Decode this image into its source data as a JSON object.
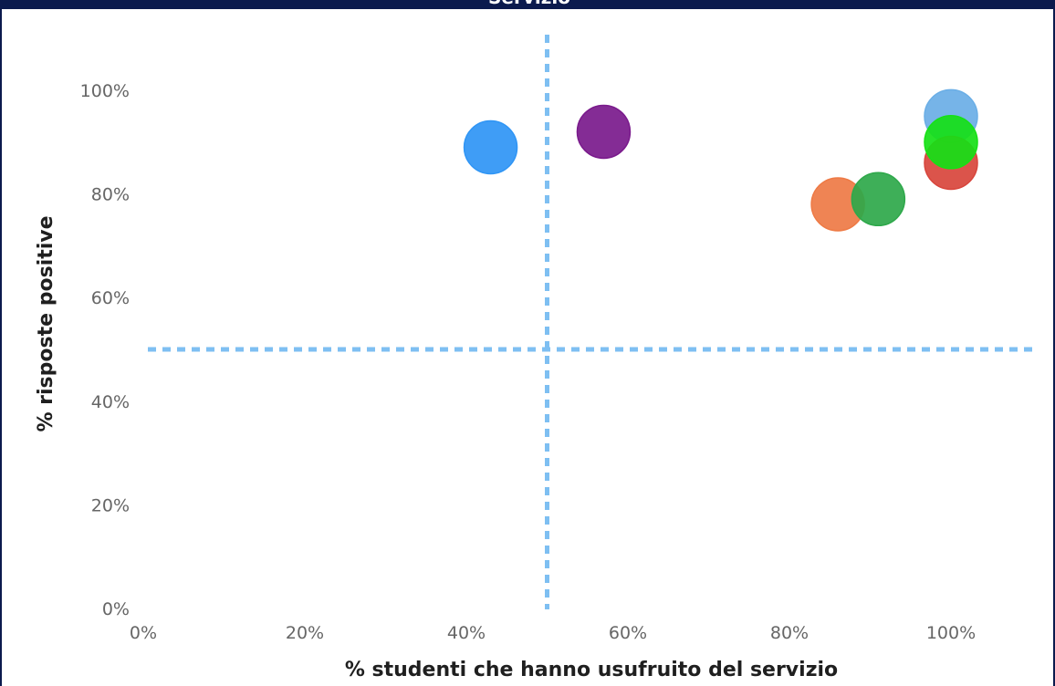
{
  "header": {
    "title": "Servizio"
  },
  "chart_data": {
    "type": "scatter",
    "xlabel": "% studenti che hanno usufruito del servizio",
    "ylabel": "% risposte positive",
    "xlim": [
      0,
      110
    ],
    "ylim": [
      0,
      110
    ],
    "x_ticks": [
      "0%",
      "20%",
      "40%",
      "60%",
      "80%",
      "100%"
    ],
    "y_ticks": [
      "0%",
      "20%",
      "40%",
      "60%",
      "80%",
      "100%"
    ],
    "grid": false,
    "reference_lines": {
      "x": 50,
      "y": 50,
      "color": "#7ebff2",
      "style": "dashed"
    },
    "points": [
      {
        "x": 43,
        "y": 89,
        "color": "#2f95f5"
      },
      {
        "x": 57,
        "y": 92,
        "color": "#7a1a8c"
      },
      {
        "x": 86,
        "y": 78,
        "color": "#ee7a45"
      },
      {
        "x": 91,
        "y": 79,
        "color": "#2ea84a"
      },
      {
        "x": 100,
        "y": 95,
        "color": "#6aaee6"
      },
      {
        "x": 100,
        "y": 86,
        "color": "#d8453c"
      },
      {
        "x": 100,
        "y": 90,
        "color": "#16e016"
      }
    ]
  }
}
